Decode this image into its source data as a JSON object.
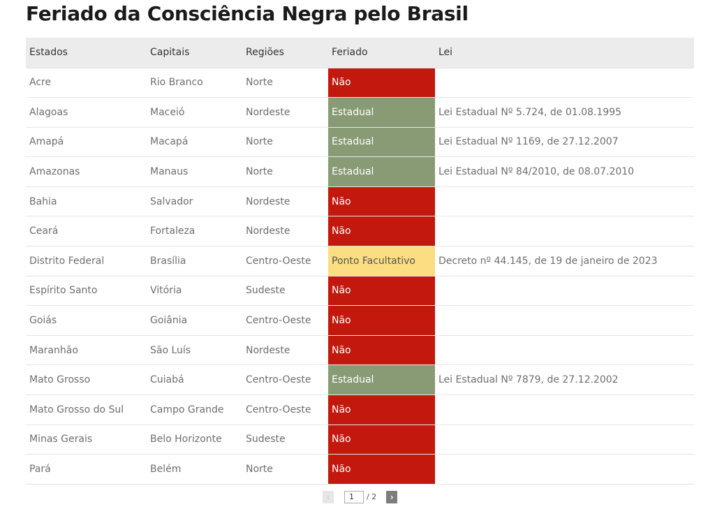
{
  "title": "Feriado da Consciência Negra pelo Brasil",
  "table": {
    "headers": [
      "Estados",
      "Capitais",
      "Regiões",
      "Feriado",
      "Lei"
    ],
    "rows": [
      {
        "estado": "Acre",
        "capital": "Rio Branco",
        "regiao": "Norte",
        "feriado": "Não",
        "status": "nao",
        "lei": ""
      },
      {
        "estado": "Alagoas",
        "capital": "Maceió",
        "regiao": "Nordeste",
        "feriado": "Estadual",
        "status": "estadual",
        "lei": "Lei Estadual Nº 5.724, de 01.08.1995"
      },
      {
        "estado": "Amapá",
        "capital": "Macapá",
        "regiao": "Norte",
        "feriado": "Estadual",
        "status": "estadual",
        "lei": "Lei Estadual Nº 1169, de 27.12.2007"
      },
      {
        "estado": "Amazonas",
        "capital": "Manaus",
        "regiao": "Norte",
        "feriado": "Estadual",
        "status": "estadual",
        "lei": "Lei Estadual Nº 84/2010, de 08.07.2010"
      },
      {
        "estado": "Bahia",
        "capital": "Salvador",
        "regiao": "Nordeste",
        "feriado": "Não",
        "status": "nao",
        "lei": ""
      },
      {
        "estado": "Ceará",
        "capital": "Fortaleza",
        "regiao": "Nordeste",
        "feriado": "Não",
        "status": "nao",
        "lei": ""
      },
      {
        "estado": "Distrito Federal",
        "capital": "Brasília",
        "regiao": "Centro-Oeste",
        "feriado": "Ponto Facultativo",
        "status": "ponto",
        "lei": "Decreto nº 44.145, de 19 de janeiro de 2023"
      },
      {
        "estado": "Espírito Santo",
        "capital": "Vitória",
        "regiao": "Sudeste",
        "feriado": "Não",
        "status": "nao",
        "lei": ""
      },
      {
        "estado": "Goiás",
        "capital": "Goiânia",
        "regiao": "Centro-Oeste",
        "feriado": "Não",
        "status": "nao",
        "lei": ""
      },
      {
        "estado": "Maranhão",
        "capital": "São Luís",
        "regiao": "Nordeste",
        "feriado": "Não",
        "status": "nao",
        "lei": ""
      },
      {
        "estado": "Mato Grosso",
        "capital": "Cuiabá",
        "regiao": "Centro-Oeste",
        "feriado": "Estadual",
        "status": "estadual",
        "lei": "Lei Estadual Nº 7879, de 27.12.2002"
      },
      {
        "estado": "Mato Grosso do Sul",
        "capital": "Campo Grande",
        "regiao": "Centro-Oeste",
        "feriado": "Não",
        "status": "nao",
        "lei": ""
      },
      {
        "estado": "Minas Gerais",
        "capital": "Belo Horizonte",
        "regiao": "Sudeste",
        "feriado": "Não",
        "status": "nao",
        "lei": ""
      },
      {
        "estado": "Pará",
        "capital": "Belém",
        "regiao": "Norte",
        "feriado": "Não",
        "status": "nao",
        "lei": ""
      }
    ]
  },
  "pagination": {
    "prev_icon": "chevron-left-icon",
    "prev_glyph": "‹",
    "current_page": "1",
    "total_label": "/ 2",
    "next_icon": "chevron-right-icon",
    "next_glyph": "›"
  },
  "colors": {
    "nao": "#c2180d",
    "estadual": "#889b74",
    "ponto_facultativo": "#fbdd82",
    "header_bg": "#ececec"
  }
}
